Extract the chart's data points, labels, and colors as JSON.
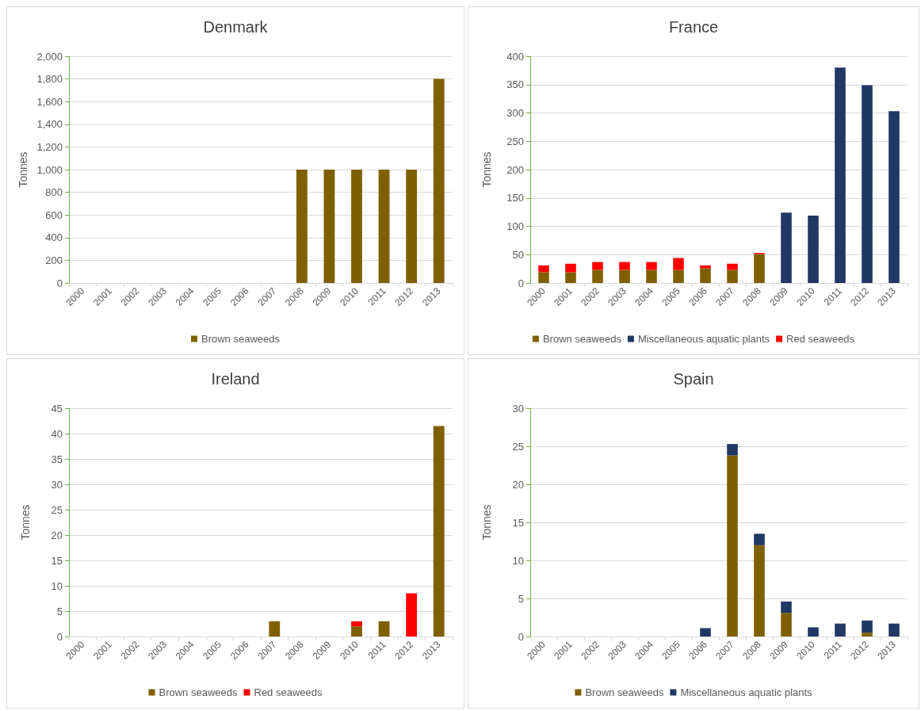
{
  "chart_data": [
    {
      "type": "bar",
      "title": "Denmark",
      "ylabel": "Tonnes",
      "categories": [
        "2000",
        "2001",
        "2002",
        "2003",
        "2004",
        "2005",
        "2006",
        "2007",
        "2008",
        "2009",
        "2010",
        "2011",
        "2012",
        "2013"
      ],
      "series": [
        {
          "name": "Brown seaweeds",
          "color": "#7f6000",
          "values": [
            null,
            null,
            null,
            null,
            null,
            null,
            null,
            null,
            1000,
            1000,
            1000,
            1000,
            1000,
            1800
          ]
        }
      ],
      "ylim": [
        0,
        2000
      ],
      "yticks": [
        0,
        {
          "value": 200,
          "label": "200"
        },
        400,
        600,
        800,
        {
          "value": 1000,
          "label": "1,000"
        },
        {
          "value": 1200,
          "label": "1,200"
        },
        {
          "value": 1400,
          "label": "1,400"
        },
        {
          "value": 1600,
          "label": "1,600"
        },
        {
          "value": 1800,
          "label": "1,800"
        },
        {
          "value": 2000,
          "label": "2,000"
        }
      ],
      "grid": "y",
      "legend": "bottom",
      "stacked": true
    },
    {
      "type": "bar",
      "title": "France",
      "ylabel": "Tonnes",
      "categories": [
        "2000",
        "2001",
        "2002",
        "2003",
        "2004",
        "2005",
        "2006",
        "2007",
        "2008",
        "2009",
        "2010",
        "2011",
        "2012",
        "2013"
      ],
      "series": [
        {
          "name": "Brown seaweeds",
          "color": "#7f6000",
          "values": [
            19,
            19,
            23,
            23,
            23,
            23,
            26,
            23,
            51,
            null,
            null,
            null,
            null,
            null
          ]
        },
        {
          "name": "Miscellaneous aquatic plants",
          "color": "#1f3864",
          "values": [
            null,
            null,
            null,
            null,
            null,
            null,
            null,
            null,
            null,
            124,
            119,
            380,
            349,
            303
          ]
        },
        {
          "name": "Red seaweeds",
          "color": "#ff0000",
          "values": [
            12,
            15,
            14,
            14,
            14,
            21,
            5,
            11,
            2,
            null,
            null,
            null,
            null,
            null
          ]
        }
      ],
      "ylim": [
        0,
        400
      ],
      "yticks": [
        0,
        50,
        100,
        150,
        200,
        250,
        300,
        350,
        400
      ],
      "grid": "y",
      "legend": "bottom",
      "stacked": true
    },
    {
      "type": "bar",
      "title": "Ireland",
      "ylabel": "Tonnes",
      "categories": [
        "2000",
        "2001",
        "2002",
        "2003",
        "2004",
        "2005",
        "2006",
        "2007",
        "2008",
        "2009",
        "2010",
        "2011",
        "2012",
        "2013"
      ],
      "series": [
        {
          "name": "Brown seaweeds",
          "color": "#7f6000",
          "values": [
            null,
            null,
            null,
            null,
            null,
            null,
            null,
            3,
            null,
            null,
            2,
            3,
            null,
            41.5
          ]
        },
        {
          "name": "Red seaweeds",
          "color": "#ff0000",
          "values": [
            null,
            null,
            null,
            null,
            null,
            null,
            null,
            null,
            null,
            null,
            1,
            null,
            8.5,
            null
          ]
        }
      ],
      "ylim": [
        0,
        45
      ],
      "yticks": [
        0,
        5,
        10,
        15,
        20,
        25,
        30,
        35,
        40,
        45
      ],
      "grid": "y",
      "legend": "bottom",
      "stacked": true
    },
    {
      "type": "bar",
      "title": "Spain",
      "ylabel": "Tonnes",
      "categories": [
        "2000",
        "2001",
        "2002",
        "2003",
        "2004",
        "2005",
        "2006",
        "2007",
        "2008",
        "2009",
        "2010",
        "2011",
        "2012",
        "2013"
      ],
      "series": [
        {
          "name": "Brown seaweeds",
          "color": "#7f6000",
          "values": [
            null,
            null,
            null,
            null,
            null,
            null,
            null,
            23.8,
            12,
            3.1,
            null,
            null,
            0.5,
            null
          ]
        },
        {
          "name": "Miscellaneous aquatic plants",
          "color": "#1f3864",
          "values": [
            null,
            null,
            null,
            null,
            null,
            null,
            1.1,
            1.5,
            1.5,
            1.5,
            1.2,
            1.7,
            1.6,
            1.7
          ]
        }
      ],
      "ylim": [
        0,
        30
      ],
      "yticks": [
        0,
        5,
        10,
        15,
        20,
        25,
        30
      ],
      "grid": "y",
      "legend": "bottom",
      "stacked": true
    }
  ]
}
